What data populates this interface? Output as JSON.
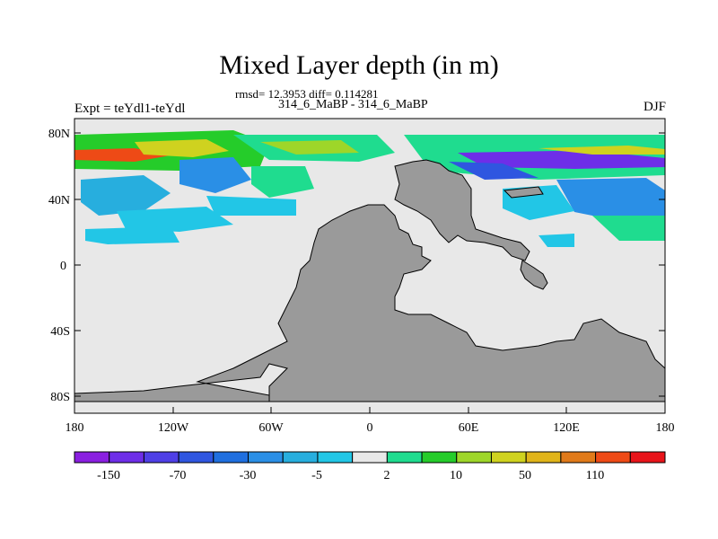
{
  "title": "Mixed Layer depth (in m)",
  "stats": "rmsd= 12.3953 diff= 0.114281",
  "runs": "314_6_MaBP - 314_6_MaBP",
  "expt": "Expt = teYdl1-teYdl",
  "season": "DJF",
  "lat_ticks": [
    "80N",
    "40N",
    "0",
    "40S",
    "80S"
  ],
  "lon_ticks": [
    "180",
    "120W",
    "60W",
    "0",
    "60E",
    "120E",
    "180"
  ],
  "colorbar": {
    "labels": [
      "-150",
      "-70",
      "-30",
      "-5",
      "2",
      "10",
      "50",
      "110"
    ],
    "colors": [
      "#8a1fe0",
      "#6e2ee8",
      "#4f3fe6",
      "#2f56e0",
      "#1f6fdf",
      "#2a8fe6",
      "#27aede",
      "#22c6e6",
      "#e8e8e8",
      "#1fdc8f",
      "#25cc2a",
      "#9ed629",
      "#cfd21f",
      "#e0b41a",
      "#e07a1a",
      "#ee4a16",
      "#e8141a"
    ]
  },
  "map": {
    "ocean_color": "#e8e8e8",
    "land_color": "#9a9a9a"
  }
}
